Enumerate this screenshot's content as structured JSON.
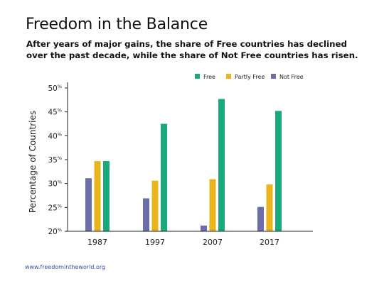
{
  "header": {
    "title": "Freedom in the Balance",
    "subtitle": "After years of major gains, the share of Free countries has declined over the past decade, while the share of Not Free countries has risen."
  },
  "footer": {
    "source": "www.freedomintheworld.org"
  },
  "chart_data": {
    "type": "bar",
    "title": "",
    "xlabel": "",
    "ylabel": "Percentage of Countries",
    "categories": [
      "1987",
      "1997",
      "2007",
      "2017"
    ],
    "series": [
      {
        "name": "Not Free",
        "color": "#6b6fa8",
        "values": [
          31.1,
          26.9,
          21.2,
          25.1
        ]
      },
      {
        "name": "Partly Free",
        "color": "#eab41d",
        "values": [
          34.7,
          30.6,
          30.9,
          29.8
        ]
      },
      {
        "name": "Free",
        "color": "#1aa97c",
        "values": [
          34.7,
          42.5,
          47.7,
          45.2
        ]
      }
    ],
    "legend_order": [
      "Free",
      "Partly Free",
      "Not Free"
    ],
    "legend_position": "top-right",
    "ylim": [
      20,
      50
    ],
    "yticks": [
      20,
      25,
      30,
      35,
      40,
      45,
      50
    ],
    "ytick_suffix": "%",
    "grid": false
  }
}
